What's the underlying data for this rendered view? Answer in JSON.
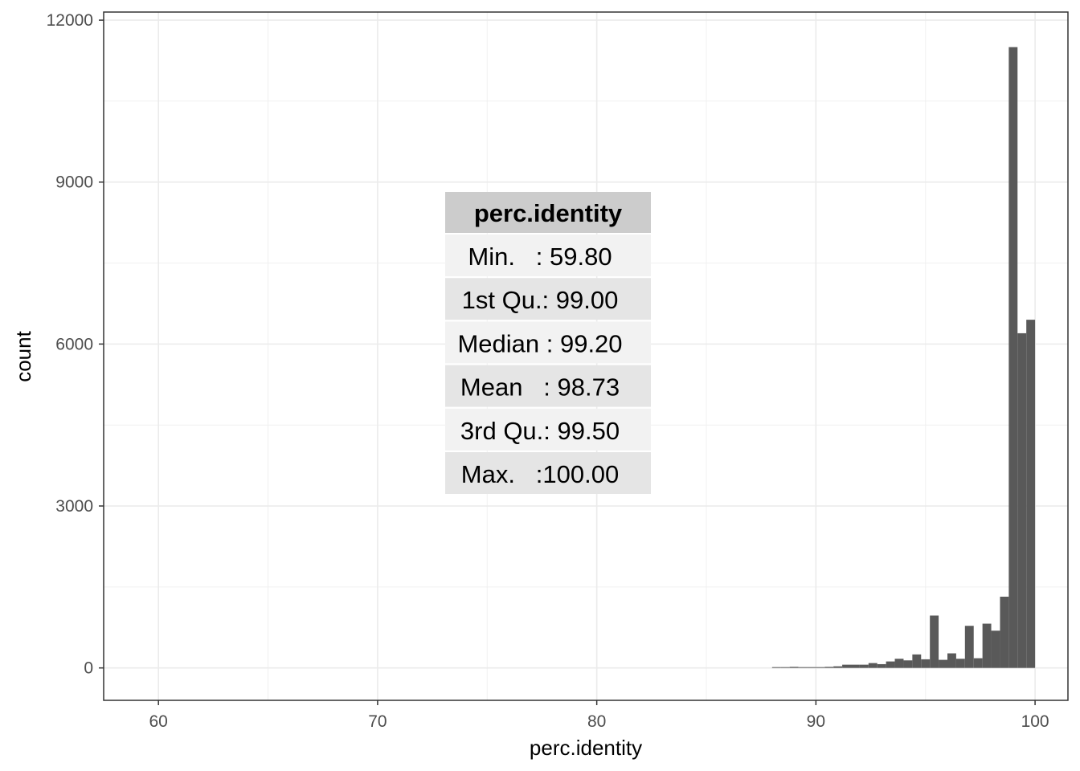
{
  "chart_data": {
    "type": "bar",
    "subtype": "histogram",
    "xlabel": "perc.identity",
    "ylabel": "count",
    "xlim": [
      57.5,
      101.5
    ],
    "ylim": [
      -600,
      12150
    ],
    "x_ticks": [
      60,
      70,
      80,
      90,
      100
    ],
    "y_ticks": [
      0,
      3000,
      6000,
      9000,
      12000
    ],
    "grid": true,
    "bin_width": 0.4,
    "bin_starts": [
      88.0,
      88.4,
      88.8,
      89.2,
      89.6,
      90.0,
      90.4,
      90.8,
      91.2,
      91.6,
      92.0,
      92.4,
      92.8,
      93.2,
      93.6,
      94.0,
      94.4,
      94.8,
      95.2,
      95.6,
      96.0,
      96.4,
      96.8,
      97.2,
      97.6,
      98.0,
      98.4,
      98.8,
      99.2,
      99.6
    ],
    "values": [
      10,
      5,
      20,
      10,
      5,
      10,
      20,
      30,
      60,
      60,
      60,
      90,
      70,
      120,
      170,
      140,
      250,
      160,
      970,
      150,
      270,
      170,
      780,
      180,
      820,
      690,
      1320,
      11500,
      6200,
      6450
    ],
    "fill_color": "#595959",
    "summary_table": {
      "header": "perc.identity",
      "rows": [
        "Min.   : 59.80",
        "1st Qu.: 99.00",
        "Median : 99.20",
        "Mean   : 98.73",
        "3rd Qu.: 99.50",
        "Max.   :100.00"
      ]
    }
  }
}
